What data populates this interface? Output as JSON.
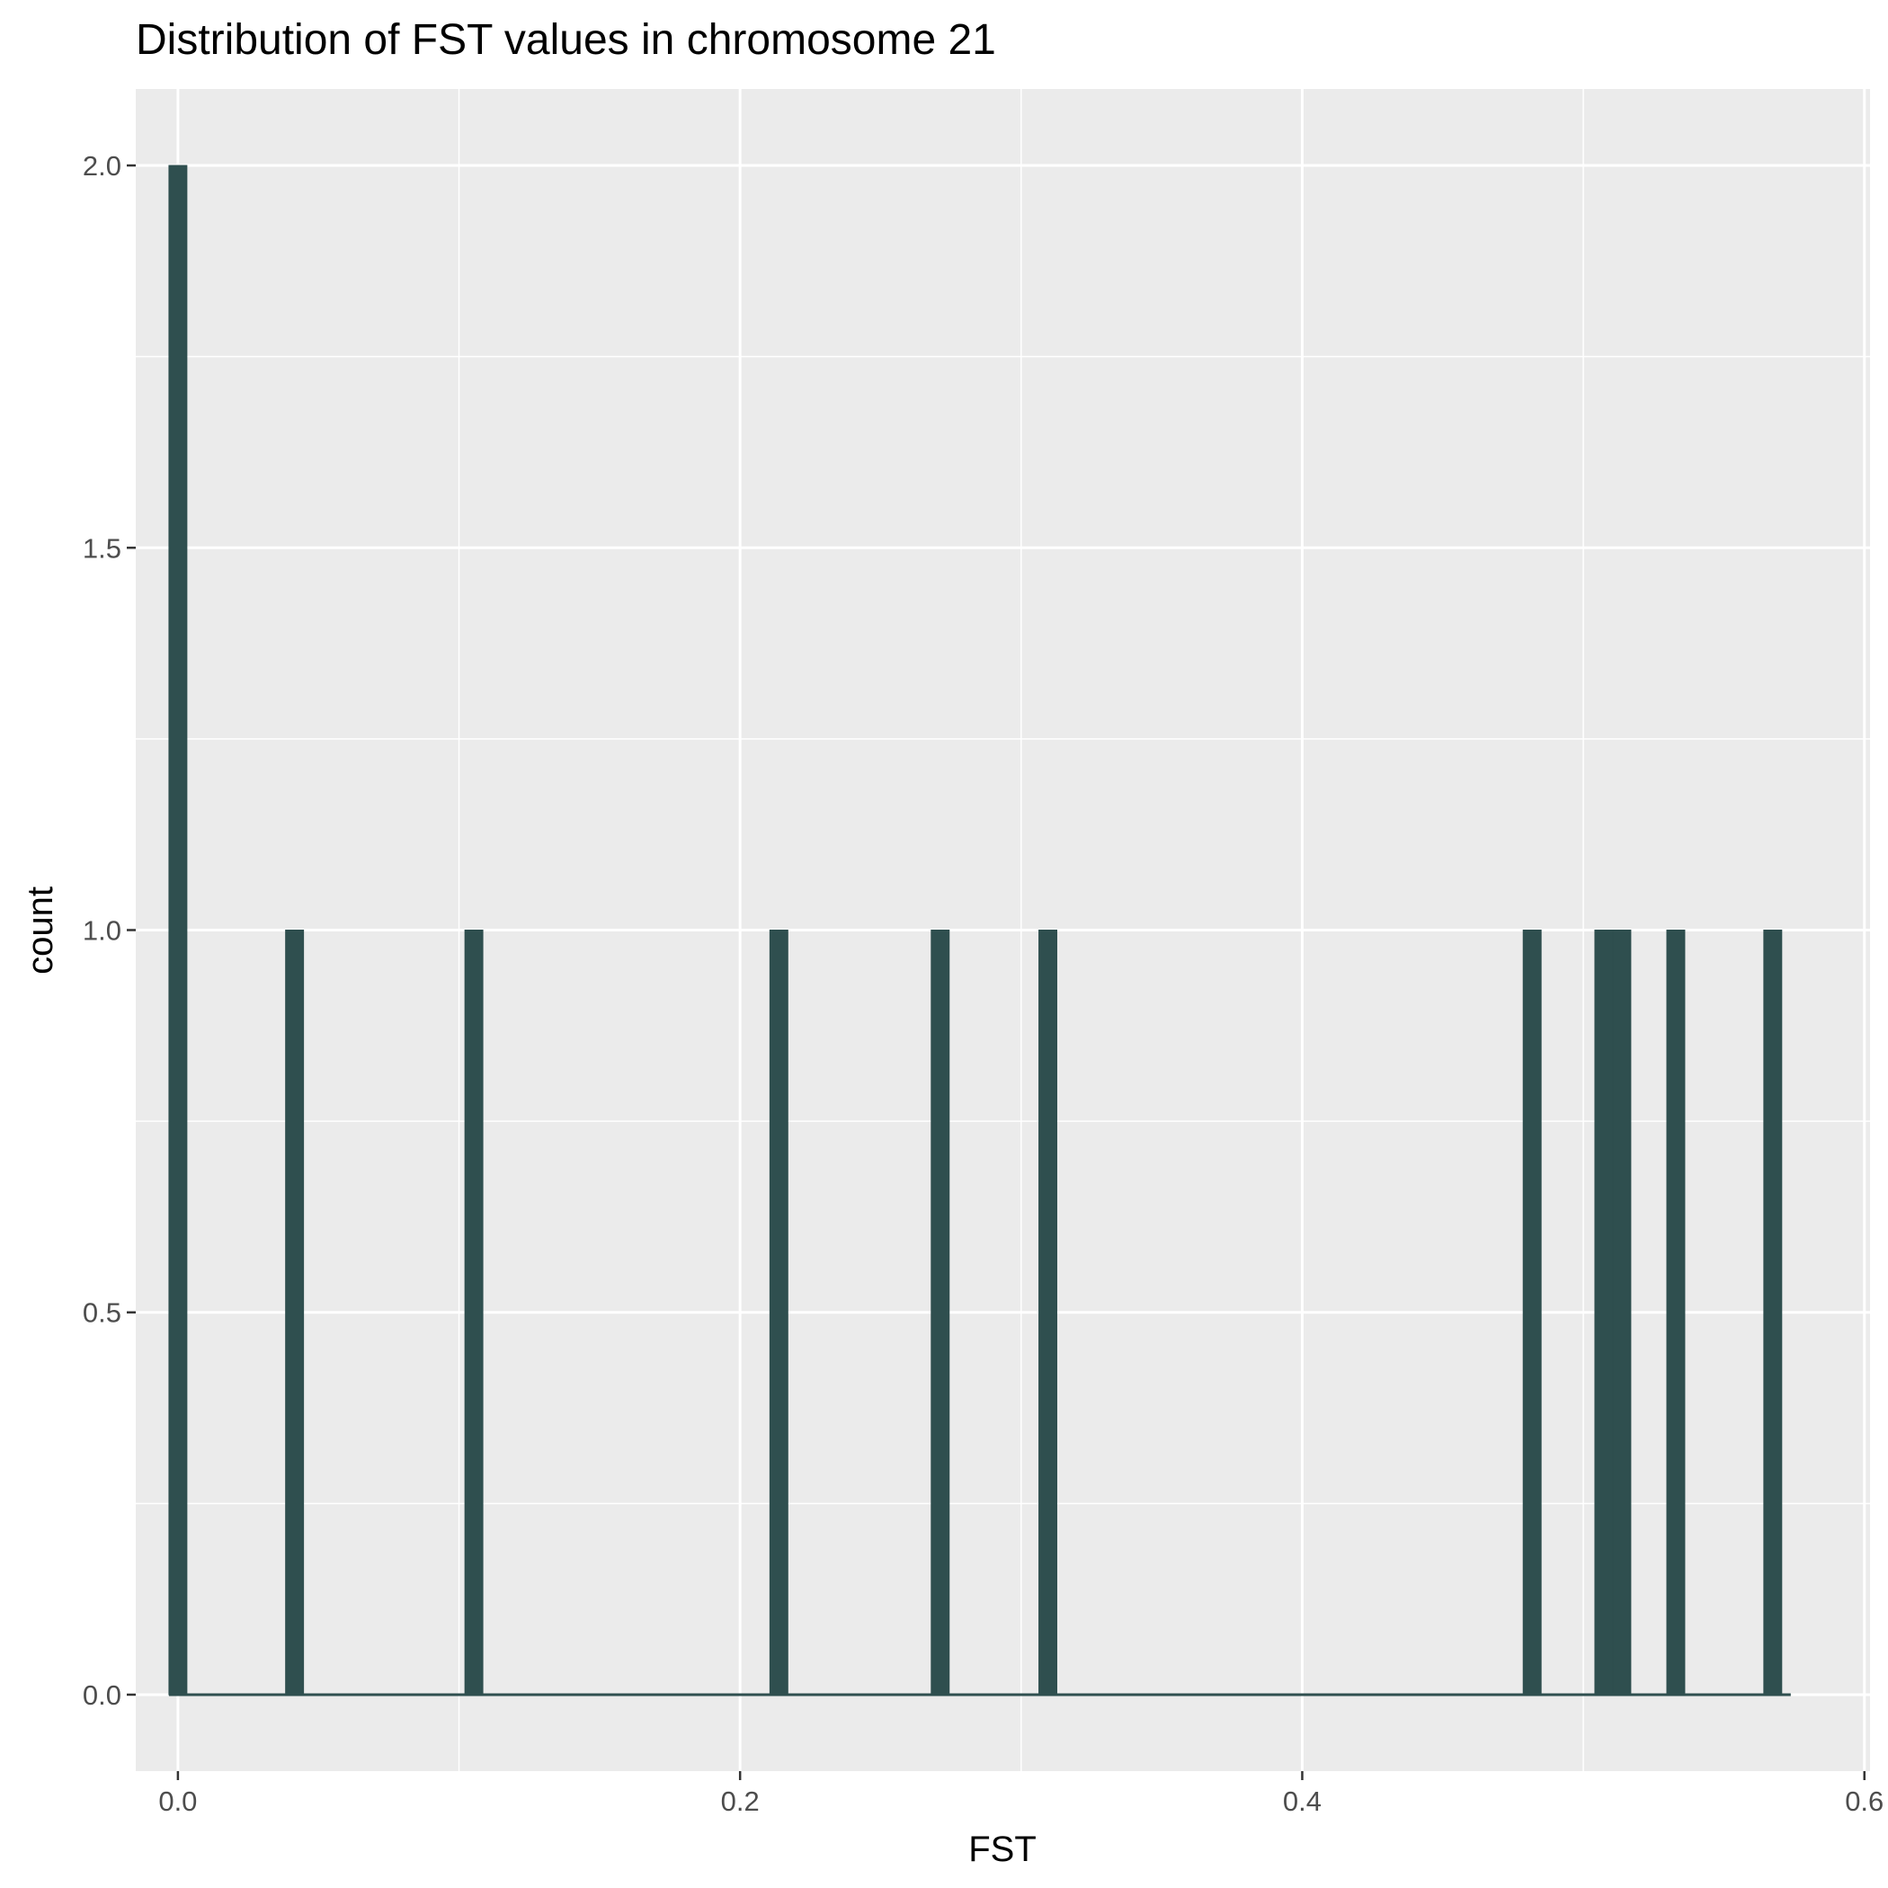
{
  "chart_data": {
    "type": "bar",
    "title": "Distribution of FST values in chromosome 21",
    "xlabel": "FST",
    "ylabel": "count",
    "xlim": [
      -0.015,
      0.602
    ],
    "ylim": [
      -0.1,
      2.1
    ],
    "x_ticks": [
      0.0,
      0.2,
      0.4,
      0.6
    ],
    "x_tick_labels": [
      "0.0",
      "0.2",
      "0.4",
      "0.6"
    ],
    "y_ticks": [
      0.0,
      0.5,
      1.0,
      1.5,
      2.0
    ],
    "y_tick_labels": [
      "0.0",
      "0.5",
      "1.0",
      "1.5",
      "2.0"
    ],
    "grid": true,
    "bin_width": 0.00638,
    "histogram_range": [
      -0.0032,
      0.5738
    ],
    "bar_color": "#2f4f4f",
    "panel_color": "#ebebeb",
    "grid_color": "#ffffff",
    "bars": [
      {
        "x": 0.0,
        "count": 2
      },
      {
        "x": 0.0415,
        "count": 1
      },
      {
        "x": 0.1053,
        "count": 1
      },
      {
        "x": 0.2138,
        "count": 1
      },
      {
        "x": 0.2712,
        "count": 1
      },
      {
        "x": 0.3095,
        "count": 1
      },
      {
        "x": 0.4818,
        "count": 1
      },
      {
        "x": 0.5073,
        "count": 1
      },
      {
        "x": 0.5137,
        "count": 1
      },
      {
        "x": 0.5329,
        "count": 1
      },
      {
        "x": 0.5674,
        "count": 1
      }
    ]
  }
}
